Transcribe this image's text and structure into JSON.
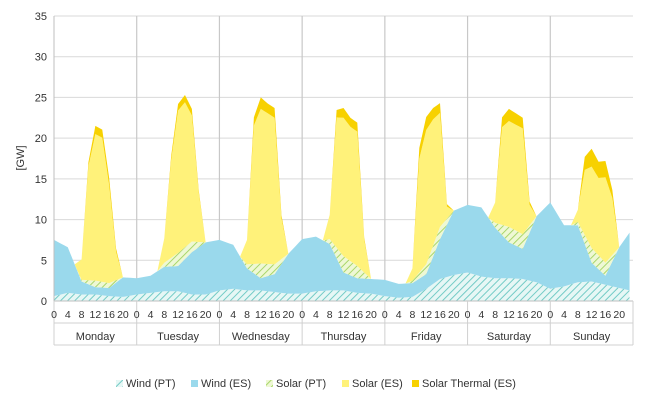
{
  "chart_data": {
    "type": "area",
    "stacked": true,
    "ylabel": "[GW]",
    "ylim": [
      0,
      35
    ],
    "yticks": [
      0,
      5,
      10,
      15,
      20,
      25,
      30,
      35
    ],
    "hour_tick_labels": [
      "0",
      "4",
      "8",
      "12",
      "16",
      "20"
    ],
    "days": [
      "Monday",
      "Tuesday",
      "Wednesday",
      "Thursday",
      "Friday",
      "Saturday",
      "Sunday"
    ],
    "x_unit": "hour of week (day index × 24 + hour)",
    "legend_position": "bottom",
    "grid": {
      "horizontal": true,
      "day_separators": true
    },
    "series": [
      {
        "name": "Wind (PT)",
        "color": "#9ddcd8",
        "pattern": "hatch",
        "points": [
          [
            0,
            0.6
          ],
          [
            4,
            1.0
          ],
          [
            8,
            0.8
          ],
          [
            12,
            0.8
          ],
          [
            16,
            0.6
          ],
          [
            20,
            0.5
          ],
          [
            24,
            0.8
          ],
          [
            28,
            1.0
          ],
          [
            32,
            1.2
          ],
          [
            36,
            1.2
          ],
          [
            40,
            0.8
          ],
          [
            44,
            0.8
          ],
          [
            48,
            1.3
          ],
          [
            52,
            1.5
          ],
          [
            56,
            1.3
          ],
          [
            60,
            1.3
          ],
          [
            64,
            1.1
          ],
          [
            68,
            0.9
          ],
          [
            72,
            0.9
          ],
          [
            76,
            1.2
          ],
          [
            80,
            1.3
          ],
          [
            84,
            1.3
          ],
          [
            88,
            1.0
          ],
          [
            92,
            0.9
          ],
          [
            96,
            0.6
          ],
          [
            100,
            0.4
          ],
          [
            104,
            0.5
          ],
          [
            108,
            1.5
          ],
          [
            112,
            2.7
          ],
          [
            116,
            3.2
          ],
          [
            120,
            3.5
          ],
          [
            124,
            3.0
          ],
          [
            128,
            2.8
          ],
          [
            132,
            2.8
          ],
          [
            136,
            2.7
          ],
          [
            140,
            2.3
          ],
          [
            144,
            1.5
          ],
          [
            148,
            1.8
          ],
          [
            152,
            2.3
          ],
          [
            156,
            2.4
          ],
          [
            160,
            2.0
          ],
          [
            164,
            1.6
          ],
          [
            167,
            1.3
          ]
        ]
      },
      {
        "name": "Wind (ES)",
        "color": "#9ad9ec",
        "pattern": "solid",
        "points": [
          [
            0,
            6.9
          ],
          [
            4,
            5.6
          ],
          [
            8,
            1.6
          ],
          [
            12,
            0.9
          ],
          [
            16,
            1.0
          ],
          [
            20,
            2.4
          ],
          [
            24,
            2.0
          ],
          [
            28,
            2.1
          ],
          [
            32,
            3.0
          ],
          [
            36,
            3.1
          ],
          [
            40,
            5.2
          ],
          [
            44,
            6.4
          ],
          [
            48,
            6.2
          ],
          [
            52,
            5.4
          ],
          [
            56,
            2.7
          ],
          [
            60,
            1.5
          ],
          [
            64,
            2.2
          ],
          [
            68,
            4.9
          ],
          [
            72,
            6.7
          ],
          [
            76,
            6.7
          ],
          [
            80,
            5.7
          ],
          [
            84,
            2.2
          ],
          [
            88,
            1.8
          ],
          [
            92,
            1.8
          ],
          [
            96,
            2.0
          ],
          [
            100,
            1.7
          ],
          [
            104,
            1.7
          ],
          [
            108,
            1.8
          ],
          [
            112,
            4.9
          ],
          [
            116,
            7.9
          ],
          [
            120,
            8.3
          ],
          [
            124,
            8.5
          ],
          [
            128,
            6.2
          ],
          [
            132,
            4.4
          ],
          [
            136,
            3.7
          ],
          [
            140,
            8.1
          ],
          [
            144,
            10.6
          ],
          [
            148,
            7.5
          ],
          [
            152,
            7.0
          ],
          [
            156,
            2.3
          ],
          [
            160,
            1.1
          ],
          [
            164,
            5.0
          ],
          [
            167,
            7.1
          ]
        ]
      },
      {
        "name": "Solar (PT)",
        "color": "#c6e58b",
        "pattern": "hatch",
        "points": [
          [
            0,
            0
          ],
          [
            6,
            0
          ],
          [
            8,
            0.2
          ],
          [
            12,
            0.8
          ],
          [
            16,
            0.6
          ],
          [
            20,
            0
          ],
          [
            30,
            0
          ],
          [
            32,
            0.5
          ],
          [
            36,
            1.6
          ],
          [
            40,
            1.3
          ],
          [
            44,
            0
          ],
          [
            54,
            0
          ],
          [
            56,
            0.5
          ],
          [
            60,
            1.8
          ],
          [
            64,
            1.2
          ],
          [
            68,
            0
          ],
          [
            78,
            0
          ],
          [
            80,
            0.6
          ],
          [
            84,
            2.0
          ],
          [
            88,
            1.5
          ],
          [
            92,
            0
          ],
          [
            102,
            0
          ],
          [
            104,
            0.3
          ],
          [
            108,
            1.2
          ],
          [
            112,
            1.5
          ],
          [
            116,
            0
          ],
          [
            126,
            0
          ],
          [
            128,
            0.6
          ],
          [
            132,
            1.9
          ],
          [
            136,
            1.8
          ],
          [
            140,
            0
          ],
          [
            150,
            0
          ],
          [
            152,
            0.4
          ],
          [
            156,
            1.8
          ],
          [
            160,
            1.6
          ],
          [
            164,
            0
          ],
          [
            167,
            0
          ]
        ]
      },
      {
        "name": "Solar (ES)",
        "color": "#fff27a",
        "pattern": "solid",
        "points": [
          [
            0,
            0
          ],
          [
            6,
            0
          ],
          [
            8,
            2.5
          ],
          [
            10,
            14.0
          ],
          [
            12,
            18.0
          ],
          [
            14,
            17.7
          ],
          [
            16,
            12.0
          ],
          [
            18,
            3.5
          ],
          [
            20,
            0
          ],
          [
            30,
            0
          ],
          [
            32,
            3.0
          ],
          [
            34,
            12.0
          ],
          [
            36,
            17.5
          ],
          [
            38,
            17.8
          ],
          [
            40,
            15.5
          ],
          [
            42,
            6.0
          ],
          [
            44,
            0
          ],
          [
            54,
            0
          ],
          [
            56,
            3.0
          ],
          [
            58,
            17.0
          ],
          [
            60,
            19.0
          ],
          [
            62,
            18.5
          ],
          [
            64,
            18.0
          ],
          [
            66,
            5.0
          ],
          [
            68,
            0
          ],
          [
            78,
            0
          ],
          [
            80,
            3.0
          ],
          [
            82,
            16.0
          ],
          [
            84,
            17.0
          ],
          [
            86,
            16.5
          ],
          [
            88,
            16.5
          ],
          [
            90,
            4.0
          ],
          [
            92,
            0
          ],
          [
            102,
            0
          ],
          [
            104,
            1.5
          ],
          [
            106,
            14.0
          ],
          [
            108,
            16.5
          ],
          [
            110,
            15.5
          ],
          [
            112,
            14.0
          ],
          [
            114,
            1.5
          ],
          [
            116,
            0
          ],
          [
            126,
            0
          ],
          [
            128,
            2.5
          ],
          [
            130,
            12.0
          ],
          [
            132,
            13.0
          ],
          [
            134,
            13.0
          ],
          [
            136,
            13.0
          ],
          [
            138,
            2.5
          ],
          [
            140,
            0
          ],
          [
            150,
            0
          ],
          [
            152,
            1.5
          ],
          [
            154,
            8.0
          ],
          [
            156,
            10.0
          ],
          [
            158,
            9.5
          ],
          [
            160,
            10.5
          ],
          [
            162,
            7.0
          ],
          [
            164,
            0
          ],
          [
            167,
            0
          ]
        ]
      },
      {
        "name": "Solar Thermal (ES)",
        "color": "#f7d100",
        "pattern": "solid",
        "points": [
          [
            0,
            0
          ],
          [
            8,
            0
          ],
          [
            10,
            0.5
          ],
          [
            12,
            1.0
          ],
          [
            14,
            1.0
          ],
          [
            16,
            0.9
          ],
          [
            18,
            0.4
          ],
          [
            20,
            0
          ],
          [
            32,
            0
          ],
          [
            34,
            0.5
          ],
          [
            36,
            0.8
          ],
          [
            38,
            0.9
          ],
          [
            40,
            0.8
          ],
          [
            42,
            0.3
          ],
          [
            44,
            0
          ],
          [
            56,
            0
          ],
          [
            58,
            1.0
          ],
          [
            60,
            1.4
          ],
          [
            62,
            1.2
          ],
          [
            64,
            1.2
          ],
          [
            66,
            0.4
          ],
          [
            68,
            0
          ],
          [
            80,
            0
          ],
          [
            82,
            0.9
          ],
          [
            84,
            1.2
          ],
          [
            86,
            1.1
          ],
          [
            88,
            1.1
          ],
          [
            90,
            0.3
          ],
          [
            92,
            0
          ],
          [
            104,
            0
          ],
          [
            106,
            1.3
          ],
          [
            108,
            1.6
          ],
          [
            110,
            1.4
          ],
          [
            112,
            1.2
          ],
          [
            114,
            0.3
          ],
          [
            116,
            0
          ],
          [
            128,
            0
          ],
          [
            130,
            1.2
          ],
          [
            132,
            1.5
          ],
          [
            134,
            1.4
          ],
          [
            136,
            1.3
          ],
          [
            138,
            0.4
          ],
          [
            140,
            0
          ],
          [
            152,
            0
          ],
          [
            154,
            1.6
          ],
          [
            156,
            2.2
          ],
          [
            158,
            2.0
          ],
          [
            160,
            2.0
          ],
          [
            162,
            1.0
          ],
          [
            164,
            0
          ],
          [
            167,
            0
          ]
        ]
      }
    ]
  }
}
